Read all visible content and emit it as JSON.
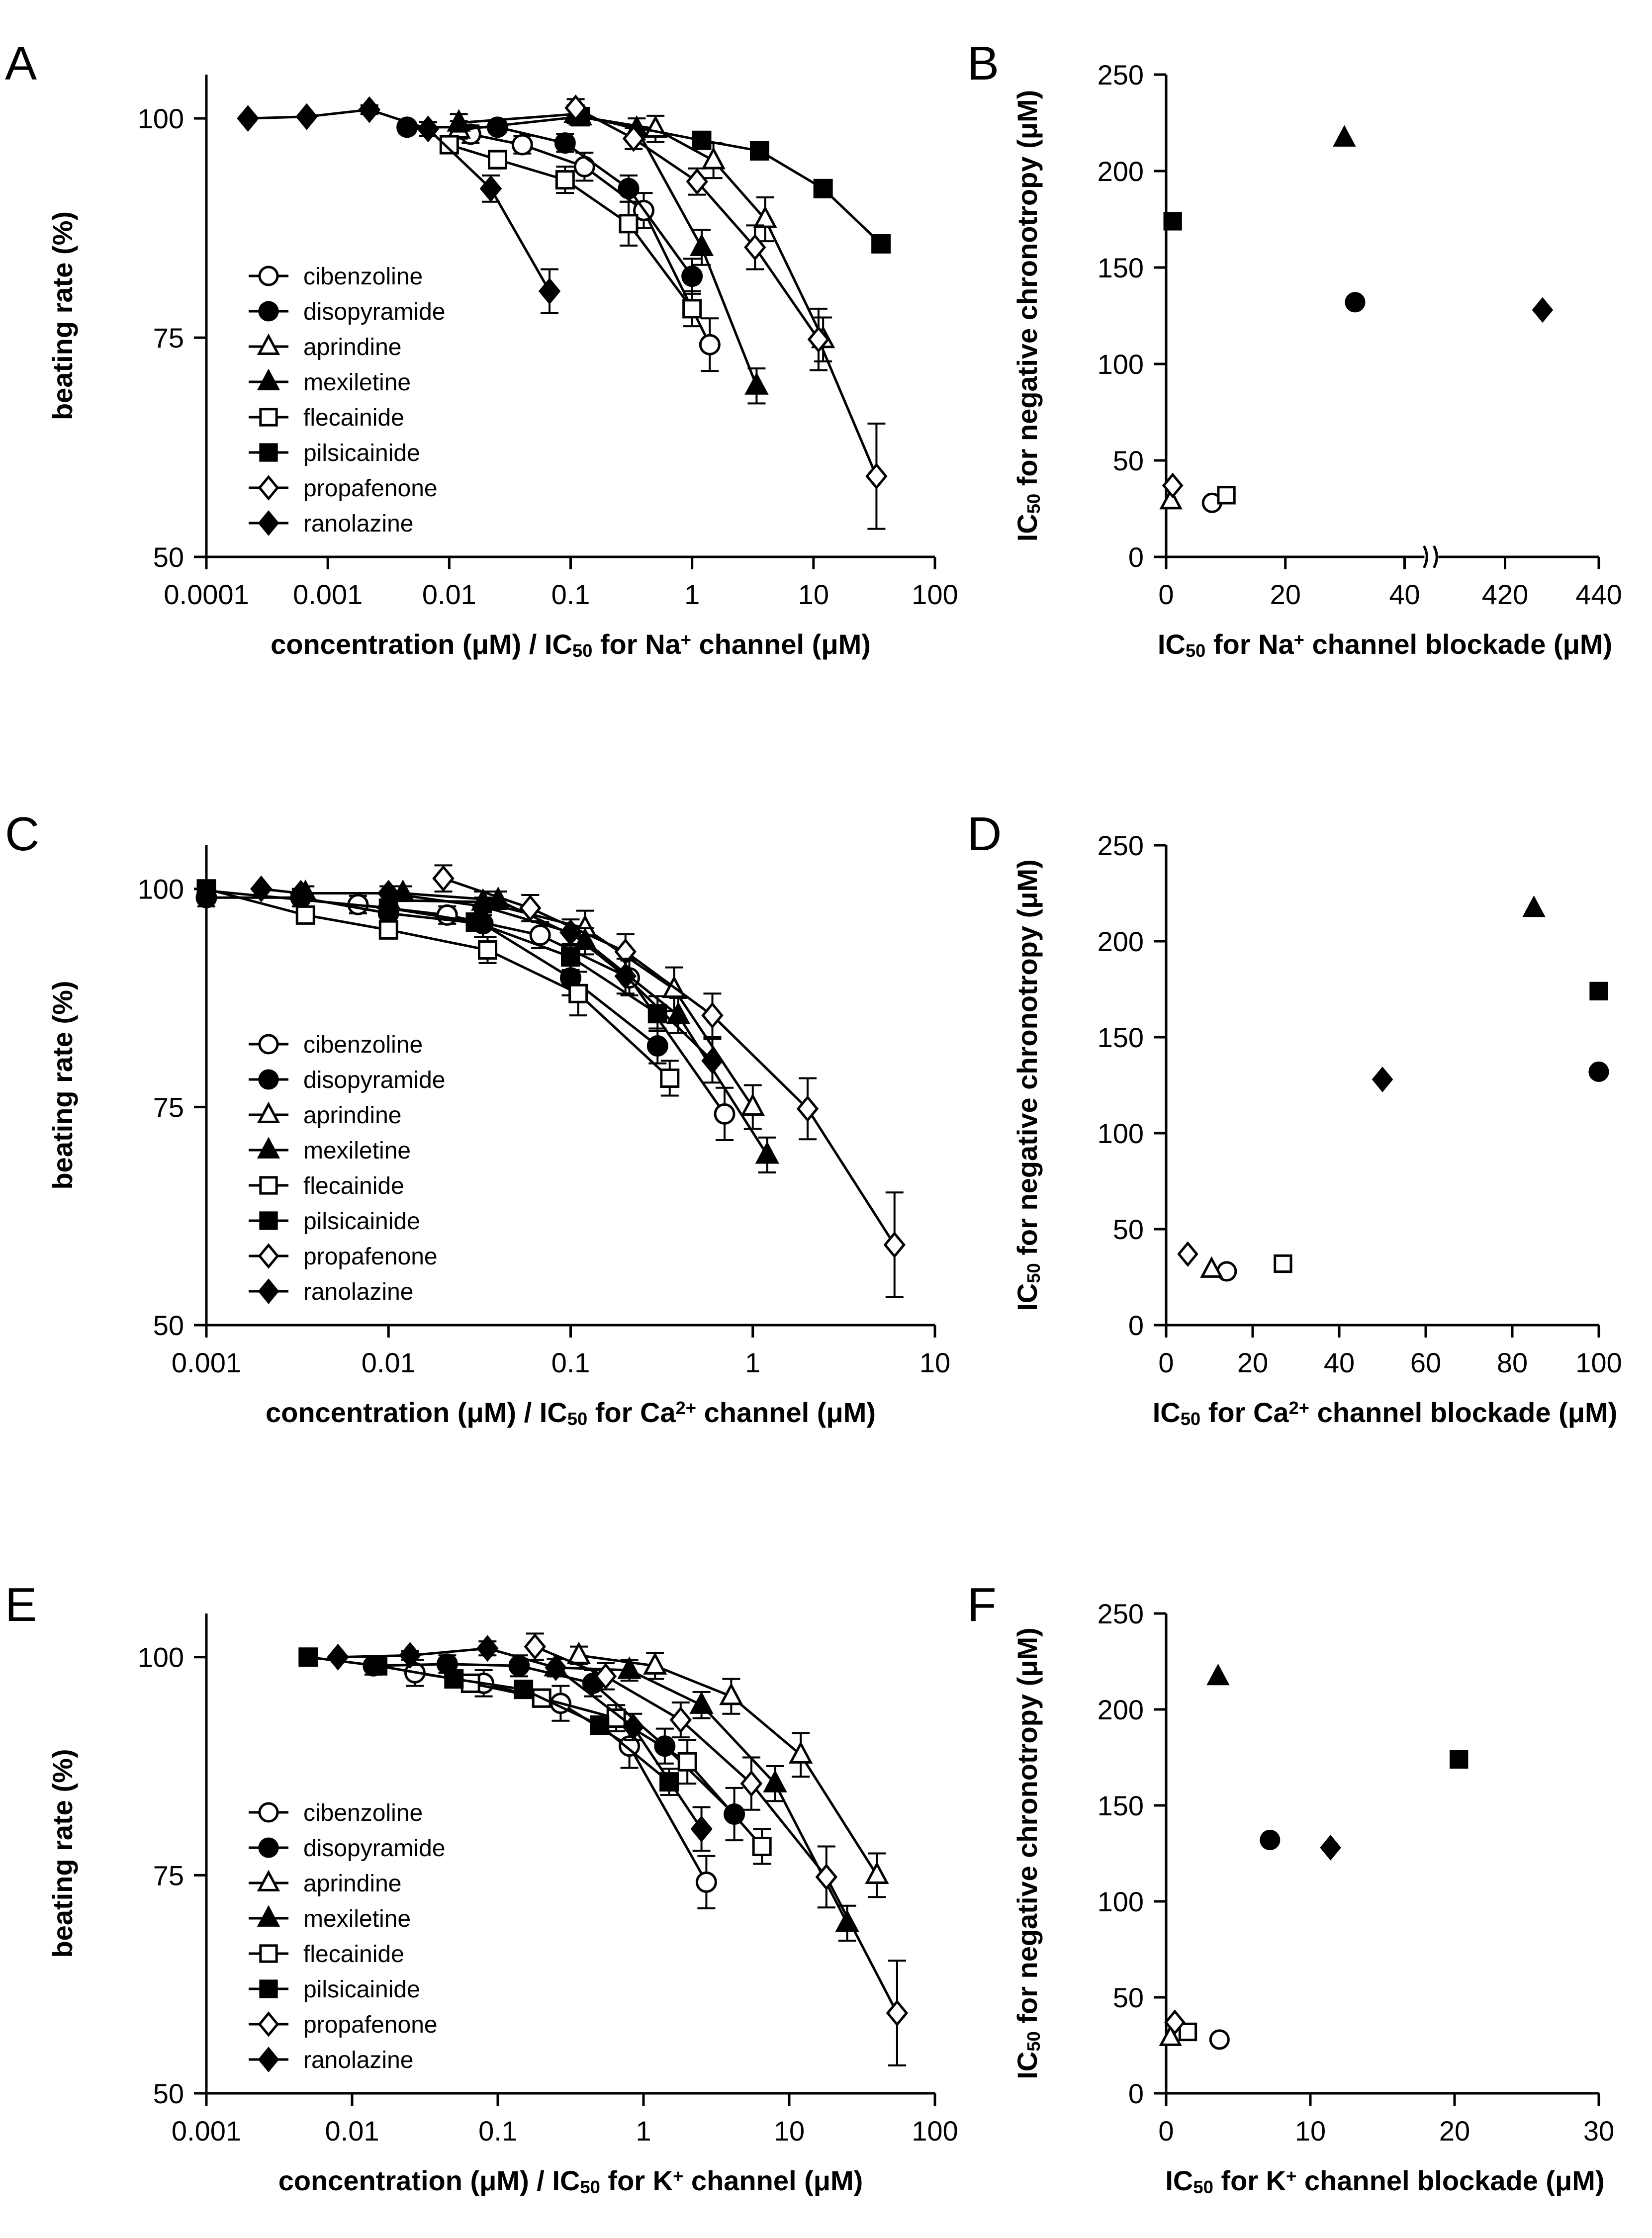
{
  "chart_data": [
    {
      "panel": "A",
      "type": "line",
      "xlabel": "concentration (μM) / IC₅₀ for Na⁺ channel (μM)",
      "ylabel": "beating rate (%)",
      "xscale": "log",
      "xlim": [
        0.0001,
        100
      ],
      "ylim": [
        50,
        105
      ],
      "xticks": [
        "0.0001",
        "0.001",
        "0.01",
        "0.1",
        "1",
        "10",
        "100"
      ],
      "yticks": [
        "50",
        "75",
        "100"
      ],
      "legend_position": "left-middle",
      "series": [
        {
          "name": "cibenzoline",
          "marker": "circle-open",
          "x": [
            0.015,
            0.04,
            0.13,
            0.4,
            1.4
          ],
          "y": [
            98.2,
            97.0,
            94.5,
            89.5,
            74.2
          ],
          "err": [
            1.0,
            1.0,
            1.6,
            2.0,
            3.0
          ]
        },
        {
          "name": "disopyramide",
          "marker": "circle-filled",
          "x": [
            0.0045,
            0.025,
            0.09,
            0.3,
            1.0
          ],
          "y": [
            99.0,
            99.0,
            97.2,
            92.0,
            82.0
          ],
          "err": [
            0.6,
            0.6,
            1.0,
            1.5,
            2.0
          ]
        },
        {
          "name": "aprindine",
          "marker": "triangle-open",
          "x": [
            0.012,
            0.12,
            0.5,
            1.5,
            4.0,
            12.0
          ],
          "y": [
            98.7,
            100.2,
            98.8,
            95.2,
            88.5,
            74.8
          ],
          "err": [
            1.0,
            1.0,
            1.5,
            2.0,
            2.5,
            2.5
          ]
        },
        {
          "name": "mexiletine",
          "marker": "triangle-filled",
          "x": [
            0.012,
            0.11,
            0.35,
            1.2,
            3.4
          ],
          "y": [
            99.5,
            100.5,
            98.8,
            85.3,
            69.5
          ],
          "err": [
            1.0,
            1.0,
            1.2,
            2.0,
            2.0
          ]
        },
        {
          "name": "flecainide",
          "marker": "square-open",
          "x": [
            0.01,
            0.025,
            0.09,
            0.3,
            1.0
          ],
          "y": [
            97.0,
            95.3,
            93.0,
            88.0,
            78.3
          ],
          "err": [
            0.8,
            1.0,
            1.5,
            2.5,
            2.0
          ]
        },
        {
          "name": "pilsicainide",
          "marker": "square-filled",
          "x": [
            0.12,
            1.2,
            3.6,
            12.0,
            36.0
          ],
          "y": [
            100.2,
            97.5,
            96.3,
            92.0,
            85.7
          ],
          "err": [
            0.5,
            0.5,
            0.6,
            0.6,
            0.8
          ]
        },
        {
          "name": "propafenone",
          "marker": "diamond-open",
          "x": [
            0.11,
            0.33,
            1.1,
            3.3,
            11.0,
            33.0
          ],
          "y": [
            101.2,
            97.7,
            92.8,
            85.3,
            74.8,
            59.2
          ],
          "err": [
            1.0,
            1.2,
            1.5,
            2.5,
            3.5,
            6.0
          ]
        },
        {
          "name": "ranolazine",
          "marker": "diamond-filled",
          "x": [
            0.00022,
            0.00067,
            0.0022,
            0.0067,
            0.022,
            0.067
          ],
          "y": [
            100.0,
            100.2,
            101.0,
            98.8,
            92.0,
            80.3
          ],
          "err": [
            0.3,
            0.3,
            0.5,
            0.8,
            1.5,
            2.5
          ]
        }
      ]
    },
    {
      "panel": "B",
      "type": "scatter",
      "xlabel": "IC₅₀ for Na⁺ channel blockade (μM)",
      "ylabel": "IC₅₀ for negative chronotropy (μM)",
      "xlim": [
        0,
        440
      ],
      "axis_break": {
        "after": 45,
        "resume": 410
      },
      "ylim": [
        0,
        250
      ],
      "xticks": [
        "0",
        "20",
        "40",
        "420",
        "440"
      ],
      "yticks": [
        "0",
        "50",
        "100",
        "150",
        "200",
        "250"
      ],
      "points": [
        {
          "drug": "cibenzoline",
          "marker": "circle-open",
          "x": 7.7,
          "y": 28.0
        },
        {
          "drug": "disopyramide",
          "marker": "circle-filled",
          "x": 31.7,
          "y": 132.0
        },
        {
          "drug": "aprindine",
          "marker": "triangle-open",
          "x": 0.8,
          "y": 29.0
        },
        {
          "drug": "mexiletine",
          "marker": "triangle-filled",
          "x": 29.9,
          "y": 217.0
        },
        {
          "drug": "flecainide",
          "marker": "square-open",
          "x": 10.1,
          "y": 32.0
        },
        {
          "drug": "pilsicainide",
          "marker": "square-filled",
          "x": 1.1,
          "y": 174.0
        },
        {
          "drug": "propafenone",
          "marker": "diamond-open",
          "x": 1.1,
          "y": 37.0
        },
        {
          "drug": "ranolazine",
          "marker": "diamond-filled",
          "x": 428.0,
          "y": 128.0
        }
      ]
    },
    {
      "panel": "C",
      "type": "line",
      "xlabel": "concentration (μM) / IC₅₀ for Ca²⁺ channel (μM)",
      "ylabel": "beating rate (%)",
      "xscale": "log",
      "xlim": [
        0.001,
        10
      ],
      "ylim": [
        50,
        105
      ],
      "xticks": [
        "0.001",
        "0.01",
        "0.1",
        "1",
        "10"
      ],
      "yticks": [
        "50",
        "75",
        "100"
      ],
      "legend_position": "left-middle",
      "series": [
        {
          "name": "cibenzoline",
          "marker": "circle-open",
          "x": [
            0.0068,
            0.021,
            0.068,
            0.21,
            0.7
          ],
          "y": [
            98.2,
            97.0,
            94.7,
            89.8,
            74.2
          ],
          "err": [
            1.0,
            1.0,
            1.5,
            2.0,
            3.0
          ]
        },
        {
          "name": "disopyramide",
          "marker": "circle-filled",
          "x": [
            0.001,
            0.0033,
            0.01,
            0.033,
            0.1,
            0.3
          ],
          "y": [
            99.0,
            99.0,
            97.2,
            96.0,
            89.8,
            82.0
          ],
          "err": [
            1.0,
            1.0,
            1.2,
            1.5,
            2.0,
            2.0
          ]
        },
        {
          "name": "aprindine",
          "marker": "triangle-open",
          "x": [
            0.01,
            0.033,
            0.12,
            0.37,
            1.0
          ],
          "y": [
            98.7,
            98.5,
            95.5,
            88.5,
            75.0
          ],
          "err": [
            1.0,
            1.2,
            2.0,
            2.5,
            2.5
          ]
        },
        {
          "name": "mexiletine",
          "marker": "triangle-filled",
          "x": [
            0.0035,
            0.012,
            0.04,
            0.12,
            0.39,
            1.2
          ],
          "y": [
            99.5,
            99.5,
            98.7,
            94.0,
            85.5,
            69.5
          ],
          "err": [
            0.8,
            0.8,
            1.0,
            1.5,
            2.0,
            2.0
          ]
        },
        {
          "name": "flecainide",
          "marker": "square-open",
          "x": [
            0.001,
            0.0035,
            0.01,
            0.035,
            0.11,
            0.35
          ],
          "y": [
            100.0,
            97.0,
            95.3,
            93.0,
            88.0,
            78.3
          ],
          "err": [
            0.8,
            0.8,
            1.0,
            1.5,
            2.5,
            2.0
          ]
        },
        {
          "name": "pilsicainide",
          "marker": "square-filled",
          "x": [
            0.001,
            0.01,
            0.03,
            0.1,
            0.3
          ],
          "y": [
            99.8,
            97.8,
            96.2,
            92.2,
            85.7
          ],
          "err": [
            0.5,
            0.8,
            1.0,
            1.5,
            2.0
          ]
        },
        {
          "name": "propafenone",
          "marker": "diamond-open",
          "x": [
            0.02,
            0.06,
            0.2,
            0.6,
            2.0,
            6.0
          ],
          "y": [
            101.2,
            97.8,
            92.8,
            85.5,
            74.8,
            59.2
          ],
          "err": [
            1.5,
            1.5,
            2.0,
            2.5,
            3.5,
            6.0
          ]
        },
        {
          "name": "ranolazine",
          "marker": "diamond-filled",
          "x": [
            0.002,
            0.0033,
            0.01,
            0.033,
            0.1,
            0.2,
            0.6
          ],
          "y": [
            100.0,
            99.5,
            99.5,
            98.0,
            95.0,
            90.0,
            80.3
          ],
          "err": [
            0.3,
            0.5,
            0.8,
            1.0,
            1.5,
            2.0,
            2.5
          ]
        }
      ]
    },
    {
      "panel": "D",
      "type": "scatter",
      "xlabel": "IC₅₀ for Ca²⁺ channel blockade (μM)",
      "ylabel": "IC₅₀ for negative chronotropy (μM)",
      "xlim": [
        0,
        100
      ],
      "ylim": [
        0,
        250
      ],
      "xticks": [
        "0",
        "20",
        "40",
        "60",
        "80",
        "100"
      ],
      "yticks": [
        "0",
        "50",
        "100",
        "150",
        "200",
        "250"
      ],
      "points": [
        {
          "drug": "cibenzoline",
          "marker": "circle-open",
          "x": 14.0,
          "y": 28.0
        },
        {
          "drug": "disopyramide",
          "marker": "circle-filled",
          "x": 100.0,
          "y": 132.0
        },
        {
          "drug": "aprindine",
          "marker": "triangle-open",
          "x": 10.5,
          "y": 29.0
        },
        {
          "drug": "mexiletine",
          "marker": "triangle-filled",
          "x": 85.0,
          "y": 217.0
        },
        {
          "drug": "flecainide",
          "marker": "square-open",
          "x": 27.0,
          "y": 32.0
        },
        {
          "drug": "pilsicainide",
          "marker": "square-filled",
          "x": 100.0,
          "y": 174.0
        },
        {
          "drug": "propafenone",
          "marker": "diamond-open",
          "x": 5.0,
          "y": 37.0
        },
        {
          "drug": "ranolazine",
          "marker": "diamond-filled",
          "x": 50.0,
          "y": 128.0
        }
      ]
    },
    {
      "panel": "E",
      "type": "line",
      "xlabel": "concentration (μM) / IC₅₀ for K⁺ channel (μM)",
      "ylabel": "beating rate (%)",
      "xscale": "log",
      "xlim": [
        0.001,
        100
      ],
      "ylim": [
        50,
        105
      ],
      "xticks": [
        "0.001",
        "0.01",
        "0.1",
        "1",
        "10",
        "100"
      ],
      "yticks": [
        "50",
        "75",
        "100"
      ],
      "legend_position": "left-middle",
      "series": [
        {
          "name": "cibenzoline",
          "marker": "circle-open",
          "x": [
            0.027,
            0.08,
            0.27,
            0.8,
            2.7
          ],
          "y": [
            98.2,
            97.0,
            94.7,
            89.8,
            74.2
          ],
          "err": [
            1.5,
            1.5,
            2.0,
            2.5,
            3.0
          ]
        },
        {
          "name": "disopyramide",
          "marker": "circle-filled",
          "x": [
            0.014,
            0.045,
            0.14,
            0.45,
            1.4,
            4.2
          ],
          "y": [
            99.0,
            99.2,
            99.0,
            97.0,
            89.8,
            82.0
          ],
          "err": [
            1.0,
            1.0,
            1.2,
            1.5,
            2.0,
            3.0
          ]
        },
        {
          "name": "aprindine",
          "marker": "triangle-open",
          "x": [
            0.36,
            1.2,
            4.0,
            12.0,
            40.0
          ],
          "y": [
            100.2,
            99.0,
            95.5,
            88.8,
            75.0
          ],
          "err": [
            1.0,
            1.5,
            2.0,
            2.5,
            2.5
          ]
        },
        {
          "name": "mexiletine",
          "marker": "triangle-filled",
          "x": [
            0.25,
            0.8,
            2.5,
            8.0,
            25.0
          ],
          "y": [
            98.8,
            98.5,
            94.5,
            85.5,
            69.5
          ],
          "err": [
            1.0,
            1.2,
            1.5,
            2.0,
            2.0
          ]
        },
        {
          "name": "flecainide",
          "marker": "square-open",
          "x": [
            0.065,
            0.2,
            0.65,
            2.0,
            6.5
          ],
          "y": [
            97.0,
            95.3,
            93.0,
            88.0,
            78.3
          ],
          "err": [
            1.0,
            1.0,
            1.5,
            2.5,
            2.0
          ]
        },
        {
          "name": "pilsicainide",
          "marker": "square-filled",
          "x": [
            0.005,
            0.015,
            0.05,
            0.15,
            0.5,
            1.5
          ],
          "y": [
            100.0,
            99.0,
            97.5,
            96.3,
            92.2,
            85.7
          ],
          "err": [
            0.5,
            0.5,
            0.6,
            0.8,
            1.0,
            1.5
          ]
        },
        {
          "name": "propafenone",
          "marker": "diamond-open",
          "x": [
            0.18,
            0.55,
            1.8,
            5.5,
            18.0,
            55.0
          ],
          "y": [
            101.2,
            97.8,
            92.8,
            85.5,
            74.8,
            59.2
          ],
          "err": [
            1.5,
            1.5,
            2.0,
            3.0,
            3.5,
            6.0
          ]
        },
        {
          "name": "ranolazine",
          "marker": "diamond-filled",
          "x": [
            0.008,
            0.025,
            0.085,
            0.25,
            0.85,
            2.5
          ],
          "y": [
            100.0,
            100.2,
            101.0,
            98.8,
            92.0,
            80.3
          ],
          "err": [
            0.3,
            0.5,
            0.8,
            1.0,
            1.5,
            2.5
          ]
        }
      ]
    },
    {
      "panel": "F",
      "type": "scatter",
      "xlabel": "IC₅₀ for K⁺ channel blockade (μM)",
      "ylabel": "IC₅₀ for negative chronotropy (μM)",
      "xlim": [
        0,
        30
      ],
      "ylim": [
        0,
        250
      ],
      "xticks": [
        "0",
        "10",
        "20",
        "30"
      ],
      "yticks": [
        "0",
        "50",
        "100",
        "150",
        "200",
        "250"
      ],
      "points": [
        {
          "drug": "cibenzoline",
          "marker": "circle-open",
          "x": 3.7,
          "y": 28.0
        },
        {
          "drug": "disopyramide",
          "marker": "circle-filled",
          "x": 7.2,
          "y": 132.0
        },
        {
          "drug": "aprindine",
          "marker": "triangle-open",
          "x": 0.3,
          "y": 29.0
        },
        {
          "drug": "mexiletine",
          "marker": "triangle-filled",
          "x": 3.6,
          "y": 217.0
        },
        {
          "drug": "flecainide",
          "marker": "square-open",
          "x": 1.5,
          "y": 32.0
        },
        {
          "drug": "pilsicainide",
          "marker": "square-filled",
          "x": 20.3,
          "y": 174.0
        },
        {
          "drug": "propafenone",
          "marker": "diamond-open",
          "x": 0.6,
          "y": 37.0
        },
        {
          "drug": "ranolazine",
          "marker": "diamond-filled",
          "x": 11.4,
          "y": 128.0
        }
      ]
    }
  ]
}
